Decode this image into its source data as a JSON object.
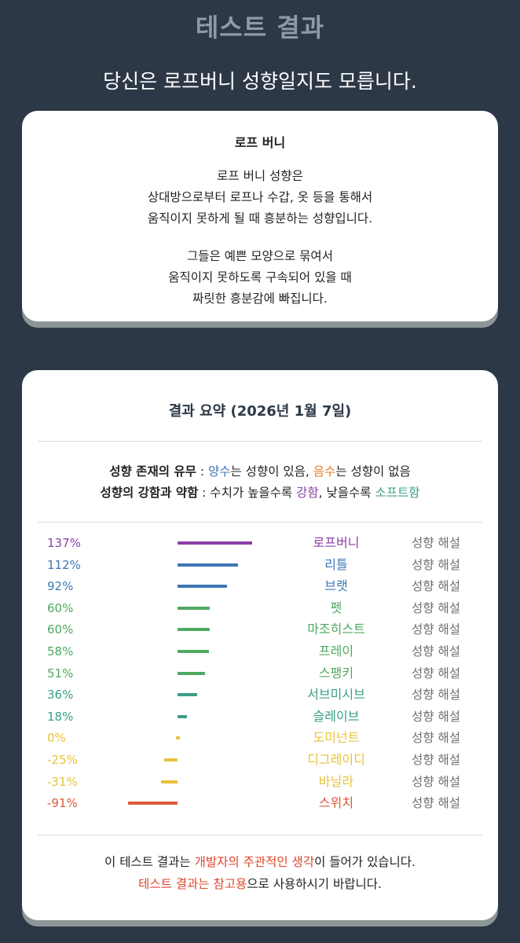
{
  "header": {
    "title": "테스트 결과",
    "subtitle": "당신은 로프버니 성향일지도 모릅니다."
  },
  "result_card": {
    "title": "로프 버니",
    "para1": [
      "로프 버니 성향은",
      "상대방으로부터 로프나 수갑, 옷 등을 통해서",
      "움직이지 못하게 될 때 흥분하는 성향입니다."
    ],
    "para2": [
      "그들은 예쁜 모양으로 묶여서",
      "움직이지 못하도록 구속되어 있을 때",
      "짜릿한 흥분감에 빠집니다."
    ]
  },
  "summary": {
    "title": "결과 요약 (2026년 1월 7일)",
    "legend1": {
      "label": "성향 존재의 유무",
      "sep": " : ",
      "positive": "양수",
      "positive_desc": "는 성향이 있음, ",
      "negative": "음수",
      "negative_desc": "는 성향이 없음"
    },
    "legend2": {
      "label": "성향의 강함과 약함",
      "sep": " : 수치가 높을수록 ",
      "strong": "강함",
      "mid": ", 낮을수록 ",
      "soft": "소프트함"
    },
    "colors": {
      "purple": "#8a3fa6",
      "blue": "#3d77b6",
      "green": "#4fa860",
      "teal": "#3a9e86",
      "yellow": "#e8c23a",
      "red": "#dc5a3a"
    }
  },
  "chart_data": {
    "type": "bar",
    "orientation": "horizontal",
    "unit": "%",
    "categories": [
      "로프버니",
      "리틀",
      "브랫",
      "펫",
      "마조히스트",
      "프레이",
      "스팽키",
      "서브미시브",
      "슬레이브",
      "도미넌트",
      "디그레이디",
      "바닐라",
      "스위치"
    ],
    "values": [
      137,
      112,
      92,
      60,
      60,
      58,
      51,
      36,
      18,
      0,
      -25,
      -31,
      -91
    ],
    "labels": [
      "137%",
      "112%",
      "92%",
      "60%",
      "60%",
      "58%",
      "51%",
      "36%",
      "18%",
      "0%",
      "-25%",
      "-31%",
      "-91%"
    ],
    "colors": [
      "#8a3fa6",
      "#3d77b6",
      "#3d77b6",
      "#4fa860",
      "#4fa860",
      "#4fa860",
      "#4fa860",
      "#3a9e86",
      "#3a9e86",
      "#e8c23a",
      "#e8c23a",
      "#e8c23a",
      "#dc5a3a"
    ],
    "action_label": "성향 해설"
  },
  "footer": {
    "line1_a": "이 테스트 결과는 ",
    "line1_b": "개발자의 주관적인 생각",
    "line1_c": "이 들어가 있습니다.",
    "line2_a": "테스트 결과는 참고용",
    "line2_b": "으로 사용하시기 바랍니다."
  }
}
